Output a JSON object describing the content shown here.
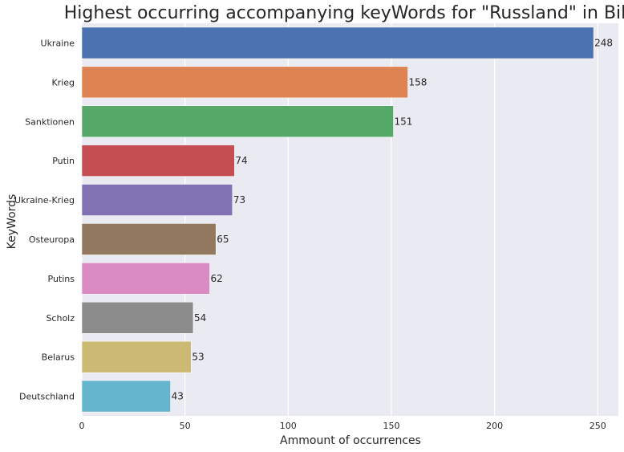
{
  "chart_data": {
    "type": "bar",
    "orientation": "horizontal",
    "title": "Highest occurring accompanying keyWords for \"Russland\" in Bild",
    "xlabel": "Ammount of occurrences",
    "ylabel": "KeyWords",
    "xlim": [
      0,
      260
    ],
    "x_ticks": [
      0,
      50,
      100,
      150,
      200,
      250
    ],
    "grid": true,
    "categories": [
      "Ukraine",
      "Krieg",
      "Sanktionen",
      "Putin",
      "Ukraine-Krieg",
      "Osteuropa",
      "Putins",
      "Scholz",
      "Belarus",
      "Deutschland"
    ],
    "values": [
      248,
      158,
      151,
      74,
      73,
      65,
      62,
      54,
      53,
      43
    ],
    "colors": [
      "#4c72b0",
      "#dd8452",
      "#55a868",
      "#c44e52",
      "#8172b3",
      "#937860",
      "#da8bc3",
      "#8c8c8c",
      "#ccb974",
      "#64b5cd"
    ],
    "background": "#eaeaf2",
    "grid_color": "#ffffff"
  }
}
